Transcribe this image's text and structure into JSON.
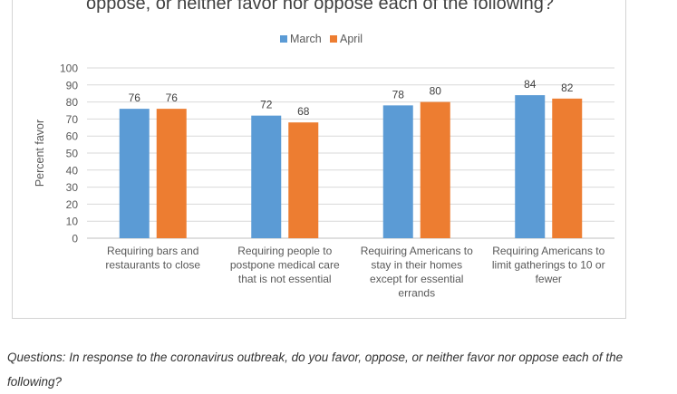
{
  "chart_data": {
    "type": "bar",
    "title": "oppose, or neither favor nor oppose each of the following?",
    "ylabel": "Percent favor",
    "ylim": [
      0,
      100
    ],
    "yticks": [
      0,
      10,
      20,
      30,
      40,
      50,
      60,
      70,
      80,
      90,
      100
    ],
    "grid": true,
    "legend_position": "top-center",
    "categories": [
      [
        "Requiring bars and",
        "restaurants to close"
      ],
      [
        "Requiring people to",
        "postpone medical care",
        "that is not essential"
      ],
      [
        "Requiring Americans to",
        "stay in their homes",
        "except for essential",
        "errands"
      ],
      [
        "Requiring Americans to",
        "limit gatherings to 10 or",
        "fewer"
      ]
    ],
    "series": [
      {
        "name": "March",
        "color": "#5b9bd5",
        "values": [
          76,
          72,
          78,
          84
        ]
      },
      {
        "name": "April",
        "color": "#ed7d31",
        "values": [
          76,
          68,
          80,
          82
        ]
      }
    ]
  },
  "caption": "Questions: In response to the coronavirus outbreak, do you favor, oppose, or neither favor nor oppose each of the following?"
}
